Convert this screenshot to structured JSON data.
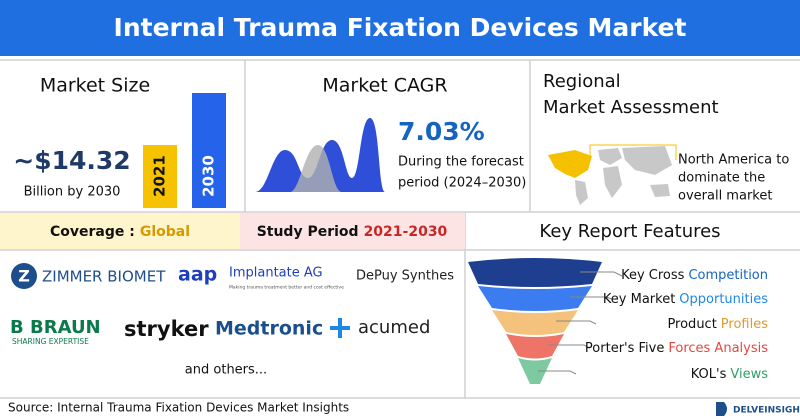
{
  "header": {
    "title": "Internal Trauma Fixation Devices Market"
  },
  "market_size": {
    "title": "Market Size",
    "value": "~$14.32",
    "caption": "Billion by 2030",
    "bars": [
      "2021",
      "2030"
    ]
  },
  "market_cagr": {
    "title": "Market CAGR",
    "value": "7.03%",
    "caption": [
      "During the forecast",
      "period (2024–2030)"
    ]
  },
  "regional": {
    "title": [
      "Regional",
      "Market Assessment"
    ],
    "caption": [
      "North America to",
      "dominate the",
      "overall market"
    ]
  },
  "coverage": {
    "label": "Coverage :",
    "value": "Global"
  },
  "study_period": {
    "label": "Study Period",
    "value": "2021-2030"
  },
  "key_players": {
    "logos": [
      "ZIMMER BIOMET",
      "aap",
      "Implantate AG",
      "Making trauma treatment better and cost effective",
      "DePuy Synthes",
      "B BRAUN",
      "SHARING EXPERTISE",
      "stryker",
      "Medtronic",
      "acumed"
    ],
    "note": "and others..."
  },
  "key_report_features": {
    "title": "Key Report Features",
    "items": [
      {
        "lead": "Key Cross",
        "highlight": "Competition"
      },
      {
        "lead": "Key Market",
        "highlight": "Opportunities"
      },
      {
        "lead": "Product",
        "highlight": "Profiles"
      },
      {
        "lead": "Porter's Five",
        "highlight": "Forces Analysis"
      },
      {
        "lead": "KOL's",
        "highlight": "Views"
      }
    ]
  },
  "footer": {
    "source": "Source: Internal Trauma Fixation Devices  Market Insights",
    "brand": "DELVEINSIGHT"
  }
}
